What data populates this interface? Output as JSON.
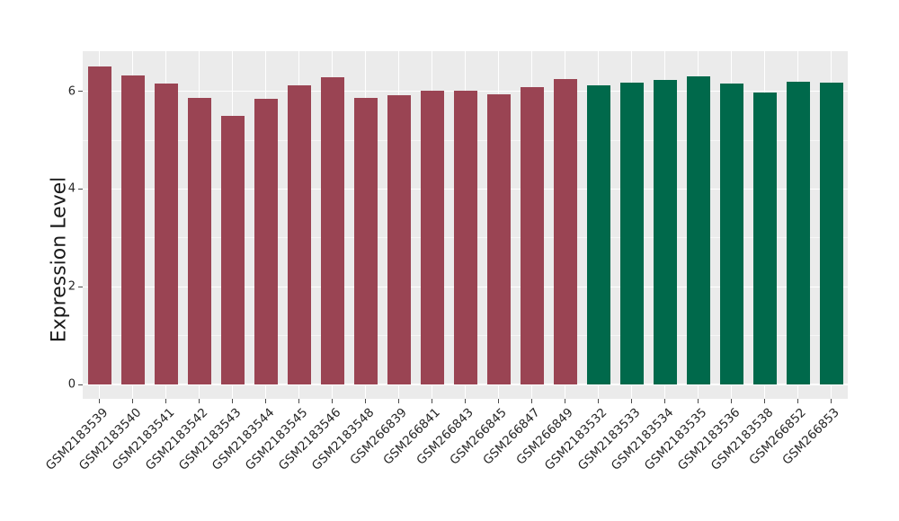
{
  "chart_data": {
    "type": "bar",
    "title": "",
    "xlabel": "",
    "ylabel": "Expression Level",
    "legend_position": "none",
    "grid": "on",
    "categories": [
      "GSM2183539",
      "GSM2183540",
      "GSM2183541",
      "GSM2183542",
      "GSM2183543",
      "GSM2183544",
      "GSM2183545",
      "GSM2183546",
      "GSM2183548",
      "GSM266839",
      "GSM266841",
      "GSM266843",
      "GSM266845",
      "GSM266847",
      "GSM266849",
      "GSM2183532",
      "GSM2183533",
      "GSM2183534",
      "GSM2183535",
      "GSM2183536",
      "GSM2183538",
      "GSM266852",
      "GSM266853"
    ],
    "values": [
      6.51,
      6.32,
      6.15,
      5.87,
      5.5,
      5.84,
      6.12,
      6.28,
      5.87,
      5.92,
      6.02,
      6.01,
      5.93,
      6.08,
      6.25,
      6.13,
      6.18,
      6.23,
      6.3,
      6.16,
      5.97,
      6.2,
      6.17
    ],
    "group_index": [
      0,
      0,
      0,
      0,
      0,
      0,
      0,
      0,
      0,
      0,
      0,
      0,
      0,
      0,
      0,
      1,
      1,
      1,
      1,
      1,
      1,
      1,
      1
    ],
    "group_colors": [
      "#9A4453",
      "#00694B"
    ],
    "yticks": [
      0,
      2,
      4,
      6
    ],
    "yminor": [
      1,
      3,
      5
    ],
    "ylim": [
      -0.29,
      6.82
    ],
    "panel_bg": "#EBEBEB",
    "grid_color": "#FFFFFF",
    "tick_color": "#4a4a4a",
    "text_color": "#262626"
  }
}
